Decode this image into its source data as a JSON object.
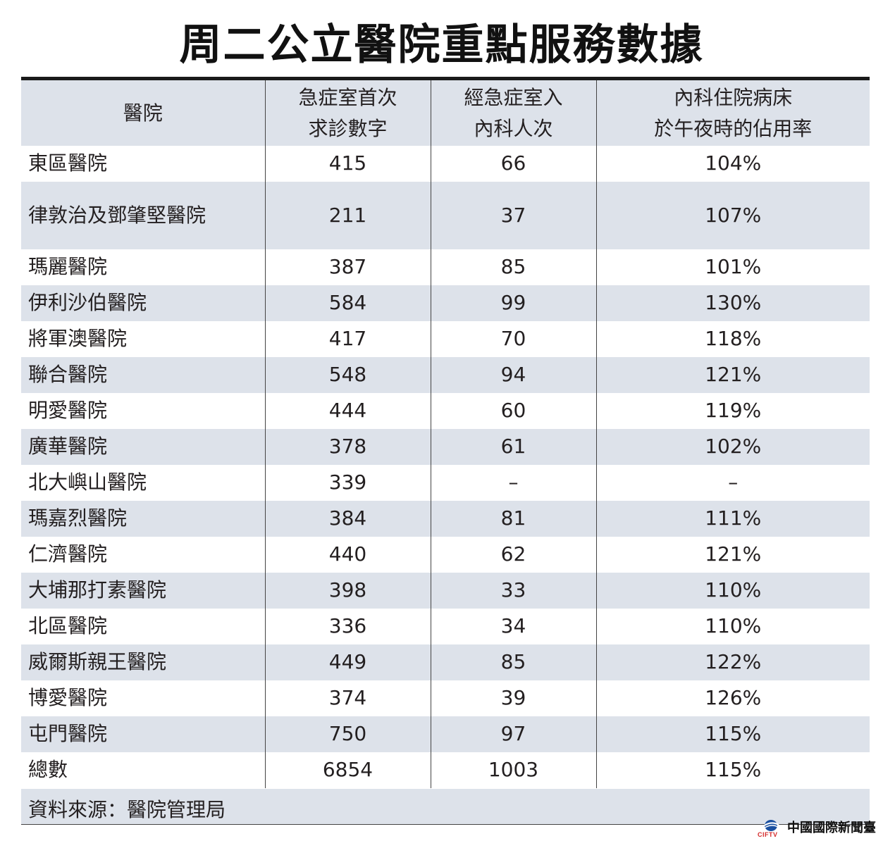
{
  "title": "周二公立醫院重點服務數據",
  "table": {
    "headers": [
      [
        "醫院"
      ],
      [
        "急症室首次",
        "求診數字"
      ],
      [
        "經急症室入",
        "內科人次"
      ],
      [
        "內科住院病床",
        "於午夜時的佔用率"
      ]
    ],
    "rows": [
      {
        "name": "東區醫院",
        "ae": "415",
        "admit": "66",
        "occ": "104%"
      },
      {
        "name": "律敦治及鄧肇堅醫院",
        "ae": "211",
        "admit": "37",
        "occ": "107%"
      },
      {
        "name": "瑪麗醫院",
        "ae": "387",
        "admit": "85",
        "occ": "101%"
      },
      {
        "name": "伊利沙伯醫院",
        "ae": "584",
        "admit": "99",
        "occ": "130%"
      },
      {
        "name": "將軍澳醫院",
        "ae": "417",
        "admit": "70",
        "occ": "118%"
      },
      {
        "name": "聯合醫院",
        "ae": "548",
        "admit": "94",
        "occ": "121%"
      },
      {
        "name": "明愛醫院",
        "ae": "444",
        "admit": "60",
        "occ": "119%"
      },
      {
        "name": "廣華醫院",
        "ae": "378",
        "admit": "61",
        "occ": "102%"
      },
      {
        "name": "北大嶼山醫院",
        "ae": "339",
        "admit": "–",
        "occ": "–"
      },
      {
        "name": "瑪嘉烈醫院",
        "ae": "384",
        "admit": "81",
        "occ": "111%"
      },
      {
        "name": "仁濟醫院",
        "ae": "440",
        "admit": "62",
        "occ": "121%"
      },
      {
        "name": "大埔那打素醫院",
        "ae": "398",
        "admit": "33",
        "occ": "110%"
      },
      {
        "name": "北區醫院",
        "ae": "336",
        "admit": "34",
        "occ": "110%"
      },
      {
        "name": "威爾斯親王醫院",
        "ae": "449",
        "admit": "85",
        "occ": "122%"
      },
      {
        "name": "博愛醫院",
        "ae": "374",
        "admit": "39",
        "occ": "126%"
      },
      {
        "name": "屯門醫院",
        "ae": "750",
        "admit": "97",
        "occ": "115%"
      },
      {
        "name": "總數",
        "ae": "6854",
        "admit": "1003",
        "occ": "115%"
      }
    ]
  },
  "source": "資料來源：醫院管理局",
  "logo": {
    "brand": "CIFTV",
    "text": "中國國際新聞臺",
    "icon": "globe-icon"
  },
  "colors": {
    "shade": "#dde2ea",
    "rule": "#1a1a1a",
    "brand_red": "#d42a2a",
    "brand_blue": "#1a4fa0"
  }
}
